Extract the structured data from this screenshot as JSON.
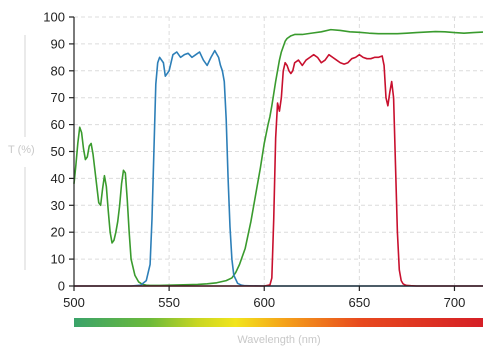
{
  "chart_data": {
    "type": "line",
    "xlabel": "Wavelength (nm)",
    "ylabel": "T (%)",
    "xlim": [
      500,
      715
    ],
    "ylim": [
      0,
      100
    ],
    "x_ticks": [
      500,
      550,
      600,
      650,
      700
    ],
    "y_ticks": [
      0,
      10,
      20,
      30,
      40,
      50,
      60,
      70,
      80,
      90,
      100
    ],
    "grid": true,
    "spectrum_bar": {
      "stops": [
        {
          "nm": 500,
          "color": "#3aa36a"
        },
        {
          "nm": 540,
          "color": "#6cba3a"
        },
        {
          "nm": 565,
          "color": "#c8d622"
        },
        {
          "nm": 585,
          "color": "#f2e51c"
        },
        {
          "nm": 610,
          "color": "#f5a31a"
        },
        {
          "nm": 650,
          "color": "#e84a1e"
        },
        {
          "nm": 715,
          "color": "#d51f26"
        }
      ]
    },
    "series": [
      {
        "color": "#3a9b2e",
        "x": [
          500,
          501,
          502,
          503,
          504,
          505,
          506,
          507,
          508,
          509,
          510,
          511,
          512,
          513,
          514,
          515,
          516,
          517,
          518,
          519,
          520,
          521,
          522,
          523,
          524,
          525,
          526,
          527,
          528,
          529,
          530,
          532,
          534,
          536,
          538,
          540,
          545,
          550,
          555,
          560,
          565,
          570,
          575,
          580,
          583,
          585,
          587,
          590,
          593,
          596,
          598,
          600,
          602,
          603,
          604,
          606,
          608,
          609,
          610,
          611,
          612,
          614,
          616,
          618,
          620,
          625,
          630,
          635,
          640,
          645,
          650,
          655,
          660,
          665,
          670,
          675,
          680,
          685,
          690,
          695,
          700,
          705,
          710,
          715
        ],
        "y": [
          38,
          45,
          53,
          59,
          57,
          51,
          47,
          48,
          52,
          53,
          49,
          43,
          37,
          31,
          30,
          36,
          41,
          37,
          28,
          20,
          16,
          17,
          20,
          24,
          30,
          38,
          43,
          42,
          32,
          20,
          10,
          4,
          1.5,
          0.6,
          0.3,
          0.2,
          0.2,
          0.3,
          0.4,
          0.5,
          0.6,
          0.8,
          1.2,
          2,
          3,
          5,
          8,
          14,
          24,
          36,
          44,
          53,
          60,
          63,
          67,
          76,
          84,
          87,
          89,
          91,
          92,
          93,
          93.5,
          93.5,
          93.5,
          94,
          94.5,
          95.3,
          95,
          94.5,
          94.3,
          94,
          93.8,
          93.8,
          93.8,
          94,
          94.2,
          94.4,
          94.6,
          94.5,
          94.2,
          94,
          94.2,
          94.4
        ]
      },
      {
        "color": "#2d7fb8",
        "x": [
          500,
          530,
          535,
          538,
          540,
          541,
          542,
          543,
          544,
          545,
          547,
          548,
          550,
          552,
          554,
          556,
          558,
          560,
          562,
          564,
          566,
          568,
          570,
          572,
          574,
          576,
          577,
          578,
          579,
          580,
          581,
          582,
          583,
          584,
          586,
          588,
          590,
          600,
          620,
          640,
          660,
          680,
          700,
          715
        ],
        "y": [
          0,
          0,
          0.3,
          2,
          8,
          25,
          50,
          75,
          83,
          85,
          83,
          78,
          80,
          86,
          87,
          85,
          86,
          86.5,
          85,
          86,
          87,
          84,
          82,
          85,
          87.5,
          85,
          82,
          80,
          76,
          62,
          40,
          22,
          10,
          4,
          1,
          0.3,
          0.1,
          0,
          0,
          0,
          0,
          0,
          0,
          0
        ]
      },
      {
        "color": "#c8102e",
        "x": [
          500,
          600,
          603,
          604,
          605,
          606,
          607,
          608,
          609,
          610,
          611,
          612,
          613,
          614,
          615,
          616,
          618,
          620,
          622,
          624,
          626,
          628,
          630,
          632,
          634,
          636,
          638,
          640,
          642,
          644,
          646,
          648,
          650,
          652,
          654,
          656,
          658,
          660,
          662,
          663,
          664,
          665,
          666,
          667,
          668,
          669,
          670,
          671,
          672,
          673,
          674,
          675,
          677,
          680,
          690,
          700,
          715
        ],
        "y": [
          0,
          0,
          0.4,
          3,
          25,
          55,
          68,
          65,
          70,
          80,
          83,
          82,
          80,
          79,
          80,
          83,
          84,
          82,
          84,
          85,
          86,
          85,
          83,
          84,
          86,
          85,
          84,
          83,
          82.5,
          83,
          84.5,
          85,
          86,
          85,
          84.5,
          84.5,
          85,
          85,
          85.5,
          82,
          70,
          67,
          72,
          76,
          70,
          45,
          20,
          6,
          2,
          0.8,
          0.4,
          0.2,
          0.1,
          0,
          0,
          0,
          0
        ]
      }
    ]
  }
}
